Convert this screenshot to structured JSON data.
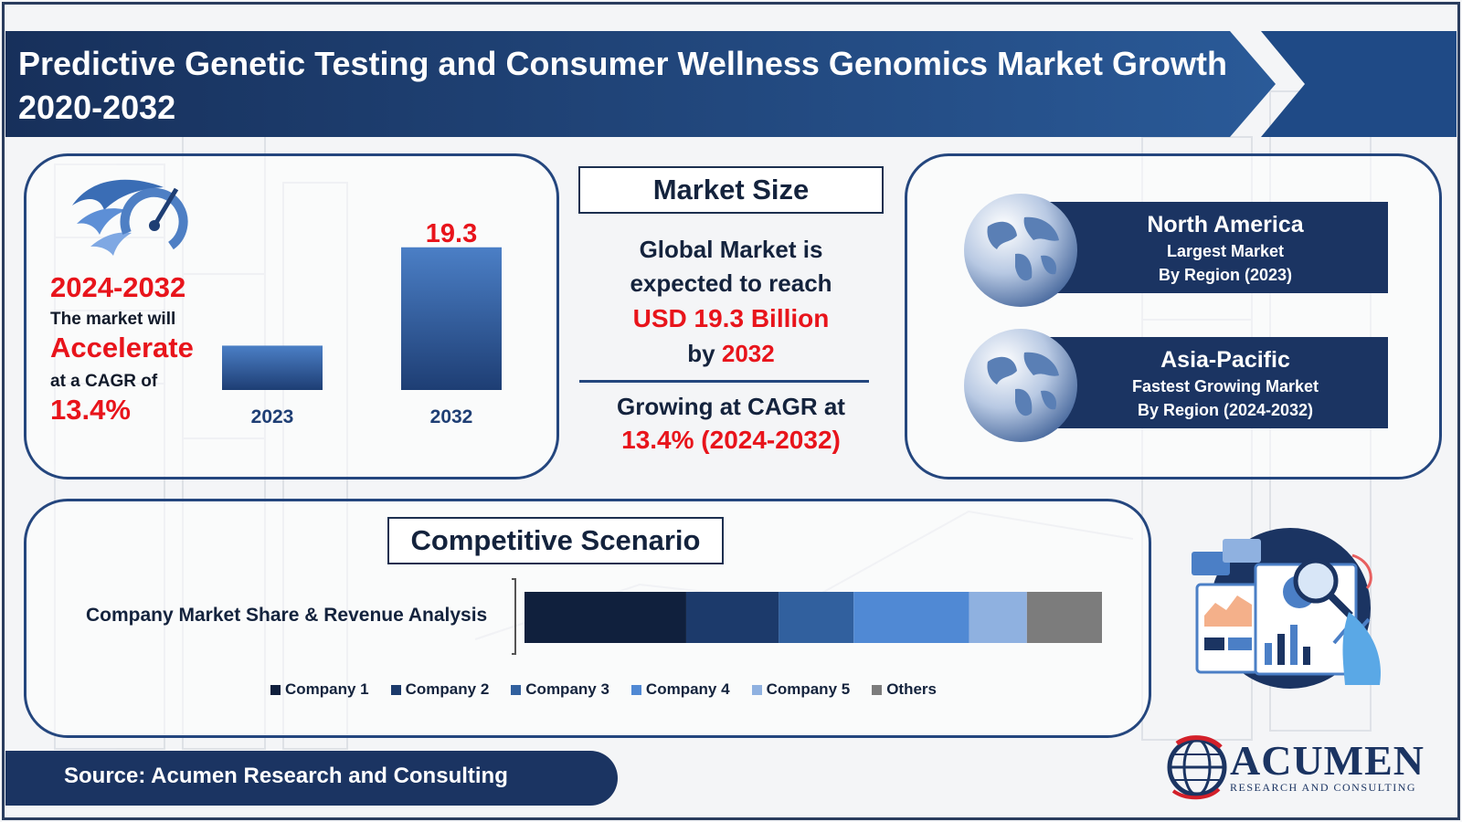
{
  "header": {
    "title": "Predictive Genetic Testing and Consumer Wellness Genomics Market Growth 2020-2032"
  },
  "growth": {
    "years": "2024-2032",
    "line1": "The market will",
    "accelerate": "Accelerate",
    "line2": "at a CAGR of",
    "cagr": "13.4%"
  },
  "market_size": {
    "title": "Market Size",
    "line1": "Global Market is",
    "line2": "expected to reach",
    "value": "USD 19.3 Billion",
    "by": "by",
    "year": "2032",
    "growing": "Growing at CAGR at",
    "cagr": "13.4% (2024-2032)"
  },
  "regions": {
    "north_america": {
      "name": "North America",
      "line1": "Largest Market",
      "line2": "By Region (2023)"
    },
    "asia_pacific": {
      "name": "Asia-Pacific",
      "line1": "Fastest Growing Market",
      "line2": "By Region (2024-2032)"
    }
  },
  "competitive": {
    "title": "Competitive Scenario",
    "label": "Company Market Share & Revenue Analysis"
  },
  "source": {
    "text": "Source: Acumen Research and Consulting"
  },
  "logo": {
    "name": "ACUMEN",
    "sub": "RESEARCH AND CONSULTING"
  },
  "chart_data": [
    {
      "type": "bar",
      "categories": [
        "2023",
        "2032"
      ],
      "values": [
        6.0,
        19.3
      ],
      "value_labels": [
        "",
        "19.3"
      ],
      "ylim": [
        0,
        21
      ],
      "grid": false,
      "colors": {
        "bar_top": "#4b7fc6",
        "bar_bottom": "#1e3e74",
        "label": "#e8141b",
        "tick": "#1e3e74"
      }
    },
    {
      "type": "bar",
      "orientation": "horizontal-stacked",
      "categories": [
        "Company Market Share & Revenue Analysis"
      ],
      "series": [
        {
          "name": "Company 1",
          "values": [
            28
          ],
          "color": "#10203d"
        },
        {
          "name": "Company 2",
          "values": [
            16
          ],
          "color": "#1c3a6b"
        },
        {
          "name": "Company 3",
          "values": [
            13
          ],
          "color": "#31609e"
        },
        {
          "name": "Company 4",
          "values": [
            20
          ],
          "color": "#5089d4"
        },
        {
          "name": "Company 5",
          "values": [
            10
          ],
          "color": "#8fb1e0"
        },
        {
          "name": "Others",
          "values": [
            13
          ],
          "color": "#7c7c7c"
        }
      ],
      "legend": "bottom"
    }
  ]
}
